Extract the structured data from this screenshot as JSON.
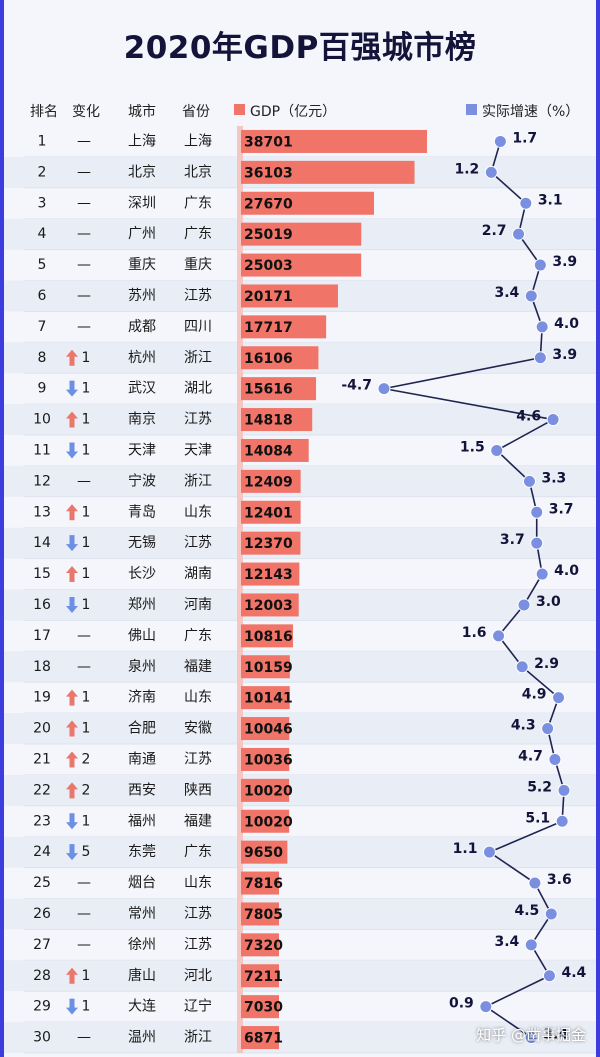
{
  "title": "2020年GDP百强城市榜",
  "headers": {
    "rank": "排名",
    "change": "变化",
    "city": "城市",
    "province": "省份",
    "gdp": "GDP（亿元）",
    "growth": "实际增速（%）"
  },
  "colors": {
    "bar": "#f07468",
    "line_point": "#7b8fe0",
    "up": "#e9776c",
    "down": "#6c8fe6",
    "row_alt": "#e9edf5"
  },
  "watermark": "知乎 @凿事掘金",
  "chart_data": {
    "type": "table",
    "series": [
      {
        "name": "GDP（亿元）",
        "type": "bar"
      },
      {
        "name": "实际增速（%）",
        "type": "line"
      }
    ],
    "rows": [
      {
        "rank": "1",
        "change": "—",
        "change_dir": "",
        "city": "上海",
        "province": "上海",
        "gdp": 38701,
        "growth": 1.7
      },
      {
        "rank": "2",
        "change": "—",
        "change_dir": "",
        "city": "北京",
        "province": "北京",
        "gdp": 36103,
        "growth": 1.2
      },
      {
        "rank": "3",
        "change": "—",
        "change_dir": "",
        "city": "深圳",
        "province": "广东",
        "gdp": 27670,
        "growth": 3.1
      },
      {
        "rank": "4",
        "change": "—",
        "change_dir": "",
        "city": "广州",
        "province": "广东",
        "gdp": 25019,
        "growth": 2.7
      },
      {
        "rank": "5",
        "change": "—",
        "change_dir": "",
        "city": "重庆",
        "province": "重庆",
        "gdp": 25003,
        "growth": 3.9
      },
      {
        "rank": "6",
        "change": "—",
        "change_dir": "",
        "city": "苏州",
        "province": "江苏",
        "gdp": 20171,
        "growth": 3.4
      },
      {
        "rank": "7",
        "change": "—",
        "change_dir": "",
        "city": "成都",
        "province": "四川",
        "gdp": 17717,
        "growth": 4.0
      },
      {
        "rank": "8",
        "change": "1",
        "change_dir": "up",
        "city": "杭州",
        "province": "浙江",
        "gdp": 16106,
        "growth": 3.9
      },
      {
        "rank": "9",
        "change": "1",
        "change_dir": "down",
        "city": "武汉",
        "province": "湖北",
        "gdp": 15616,
        "growth": -4.7
      },
      {
        "rank": "10",
        "change": "1",
        "change_dir": "up",
        "city": "南京",
        "province": "江苏",
        "gdp": 14818,
        "growth": 4.6
      },
      {
        "rank": "11",
        "change": "1",
        "change_dir": "down",
        "city": "天津",
        "province": "天津",
        "gdp": 14084,
        "growth": 1.5
      },
      {
        "rank": "12",
        "change": "—",
        "change_dir": "",
        "city": "宁波",
        "province": "浙江",
        "gdp": 12409,
        "growth": 3.3
      },
      {
        "rank": "13",
        "change": "1",
        "change_dir": "up",
        "city": "青岛",
        "province": "山东",
        "gdp": 12401,
        "growth": 3.7
      },
      {
        "rank": "14",
        "change": "1",
        "change_dir": "down",
        "city": "无锡",
        "province": "江苏",
        "gdp": 12370,
        "growth": 3.7
      },
      {
        "rank": "15",
        "change": "1",
        "change_dir": "up",
        "city": "长沙",
        "province": "湖南",
        "gdp": 12143,
        "growth": 4.0
      },
      {
        "rank": "16",
        "change": "1",
        "change_dir": "down",
        "city": "郑州",
        "province": "河南",
        "gdp": 12003,
        "growth": 3.0
      },
      {
        "rank": "17",
        "change": "—",
        "change_dir": "",
        "city": "佛山",
        "province": "广东",
        "gdp": 10816,
        "growth": 1.6
      },
      {
        "rank": "18",
        "change": "—",
        "change_dir": "",
        "city": "泉州",
        "province": "福建",
        "gdp": 10159,
        "growth": 2.9
      },
      {
        "rank": "19",
        "change": "1",
        "change_dir": "up",
        "city": "济南",
        "province": "山东",
        "gdp": 10141,
        "growth": 4.9
      },
      {
        "rank": "20",
        "change": "1",
        "change_dir": "up",
        "city": "合肥",
        "province": "安徽",
        "gdp": 10046,
        "growth": 4.3
      },
      {
        "rank": "21",
        "change": "2",
        "change_dir": "up",
        "city": "南通",
        "province": "江苏",
        "gdp": 10036,
        "growth": 4.7
      },
      {
        "rank": "22",
        "change": "2",
        "change_dir": "up",
        "city": "西安",
        "province": "陕西",
        "gdp": 10020,
        "growth": 5.2
      },
      {
        "rank": "23",
        "change": "1",
        "change_dir": "down",
        "city": "福州",
        "province": "福建",
        "gdp": 10020,
        "growth": 5.1
      },
      {
        "rank": "24",
        "change": "5",
        "change_dir": "down",
        "city": "东莞",
        "province": "广东",
        "gdp": 9650,
        "growth": 1.1
      },
      {
        "rank": "25",
        "change": "—",
        "change_dir": "",
        "city": "烟台",
        "province": "山东",
        "gdp": 7816,
        "growth": 3.6
      },
      {
        "rank": "26",
        "change": "—",
        "change_dir": "",
        "city": "常州",
        "province": "江苏",
        "gdp": 7805,
        "growth": 4.5
      },
      {
        "rank": "27",
        "change": "—",
        "change_dir": "",
        "city": "徐州",
        "province": "江苏",
        "gdp": 7320,
        "growth": 3.4
      },
      {
        "rank": "28",
        "change": "1",
        "change_dir": "up",
        "city": "唐山",
        "province": "河北",
        "gdp": 7211,
        "growth": 4.4
      },
      {
        "rank": "29",
        "change": "1",
        "change_dir": "down",
        "city": "大连",
        "province": "辽宁",
        "gdp": 7030,
        "growth": 0.9
      },
      {
        "rank": "30",
        "change": "—",
        "change_dir": "",
        "city": "温州",
        "province": "浙江",
        "gdp": 6871,
        "growth": 3.4
      }
    ]
  }
}
